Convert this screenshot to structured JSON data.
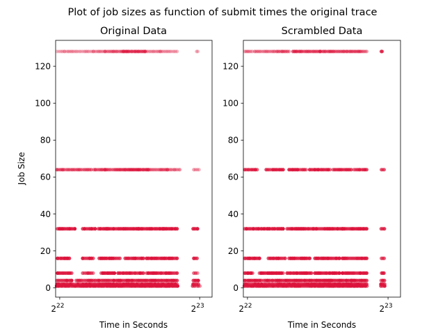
{
  "figure": {
    "suptitle": "Plot of job sizes as function of submit times the original trace",
    "point_color": "#dc143c"
  },
  "chart_data": [
    {
      "type": "scatter",
      "title": "Original Data",
      "xlabel": "Time in Seconds",
      "ylabel": "Job Size",
      "xscale": "log2",
      "xlim": [
        4110000,
        8920000
      ],
      "ylim": [
        -5,
        134
      ],
      "xticks": [
        {
          "value": 4194304,
          "base": "2",
          "exp": "22"
        },
        {
          "value": 8388608,
          "base": "2",
          "exp": "23"
        }
      ],
      "yticks": [
        0,
        20,
        40,
        60,
        80,
        100,
        120
      ],
      "grid": false,
      "bands": [
        {
          "y": 128,
          "segments": [
            [
              4140000,
              4280000,
              0.25
            ],
            [
              4300000,
              4950000,
              0.3
            ],
            [
              4960000,
              5250000,
              0.35
            ],
            [
              5250000,
              5750000,
              0.5
            ],
            [
              5750000,
              6400000,
              0.7
            ],
            [
              6400000,
              6900000,
              0.4
            ],
            [
              6900000,
              7500000,
              0.3
            ],
            [
              8260000,
              8320000,
              0.2
            ]
          ]
        },
        {
          "y": 64,
          "segments": [
            [
              4140000,
              4250000,
              0.6
            ],
            [
              4280000,
              4900000,
              0.55
            ],
            [
              4960000,
              5250000,
              0.6
            ],
            [
              5250000,
              5800000,
              0.6
            ],
            [
              5800000,
              6500000,
              0.75
            ],
            [
              6500000,
              7150000,
              0.5
            ],
            [
              7150000,
              7600000,
              0.45
            ],
            [
              8150000,
              8360000,
              0.4
            ]
          ]
        },
        {
          "y": 32,
          "segments": [
            [
              4150000,
              4520000,
              0.9
            ],
            [
              4700000,
              5000000,
              0.85
            ],
            [
              5080000,
              5300000,
              0.85
            ],
            [
              5300000,
              6200000,
              0.9
            ],
            [
              6200000,
              7000000,
              0.9
            ],
            [
              7000000,
              7500000,
              0.85
            ],
            [
              8120000,
              8300000,
              0.8
            ]
          ]
        },
        {
          "y": 16,
          "segments": [
            [
              4150000,
              4400000,
              0.85
            ],
            [
              4700000,
              4950000,
              0.8
            ],
            [
              5100000,
              5650000,
              0.85
            ],
            [
              5800000,
              6350000,
              0.85
            ],
            [
              6450000,
              7100000,
              0.85
            ],
            [
              7150000,
              7500000,
              0.8
            ],
            [
              8150000,
              8280000,
              0.75
            ]
          ]
        },
        {
          "y": 8,
          "segments": [
            [
              4150000,
              4450000,
              0.8
            ],
            [
              4700000,
              4950000,
              0.75
            ],
            [
              5150000,
              5500000,
              0.8
            ],
            [
              5600000,
              6350000,
              0.8
            ],
            [
              6450000,
              7100000,
              0.8
            ],
            [
              7150000,
              7500000,
              0.8
            ],
            [
              8150000,
              8300000,
              0.6
            ]
          ]
        },
        {
          "y": 4,
          "segments": [
            [
              4140000,
              4450000,
              0.85
            ],
            [
              4550000,
              5000000,
              0.8
            ],
            [
              5050000,
              6000000,
              0.85
            ],
            [
              6050000,
              6900000,
              0.85
            ],
            [
              6950000,
              7500000,
              0.85
            ],
            [
              8130000,
              8330000,
              0.8
            ]
          ]
        },
        {
          "y": 2,
          "segments": [
            [
              4140000,
              4500000,
              0.85
            ],
            [
              4550000,
              5200000,
              0.85
            ],
            [
              5250000,
              6300000,
              0.9
            ],
            [
              6300000,
              7000000,
              0.9
            ],
            [
              7000000,
              7500000,
              0.85
            ],
            [
              8120000,
              8340000,
              0.8
            ]
          ]
        },
        {
          "y": 1,
          "segments": [
            [
              4130000,
              4500000,
              0.9
            ],
            [
              4530000,
              5250000,
              0.9
            ],
            [
              5300000,
              6400000,
              0.95
            ],
            [
              6400000,
              7100000,
              0.95
            ],
            [
              7100000,
              7520000,
              0.9
            ],
            [
              8100000,
              8400000,
              0.6
            ]
          ]
        }
      ]
    },
    {
      "type": "scatter",
      "title": "Scrambled Data",
      "xlabel": "Time in Seconds",
      "ylabel": "",
      "xscale": "log2",
      "xlim": [
        4110000,
        8920000
      ],
      "ylim": [
        -5,
        134
      ],
      "xticks": [
        {
          "value": 4194304,
          "base": "2",
          "exp": "22"
        },
        {
          "value": 8388608,
          "base": "2",
          "exp": "23"
        }
      ],
      "yticks": [
        0,
        20,
        40,
        60,
        80,
        100,
        120
      ],
      "grid": false,
      "bands": [
        {
          "y": 128,
          "segments": [
            [
              4140000,
              4300000,
              0.35
            ],
            [
              4350000,
              4800000,
              0.4
            ],
            [
              4850000,
              5150000,
              0.55
            ],
            [
              5250000,
              6000000,
              0.65
            ],
            [
              6000000,
              6800000,
              0.6
            ],
            [
              6850000,
              7550000,
              0.55
            ],
            [
              8110000,
              8150000,
              0.6
            ]
          ]
        },
        {
          "y": 64,
          "segments": [
            [
              4140000,
              4400000,
              0.75
            ],
            [
              4600000,
              5000000,
              0.75
            ],
            [
              5150000,
              5600000,
              0.8
            ],
            [
              5700000,
              6300000,
              0.85
            ],
            [
              6400000,
              7000000,
              0.8
            ],
            [
              7100000,
              7550000,
              0.75
            ],
            [
              8120000,
              8230000,
              0.65
            ]
          ]
        },
        {
          "y": 32,
          "segments": [
            [
              4140000,
              4500000,
              0.9
            ],
            [
              4550000,
              5000000,
              0.9
            ],
            [
              5100000,
              5800000,
              0.9
            ],
            [
              5800000,
              6700000,
              0.9
            ],
            [
              6700000,
              7550000,
              0.9
            ],
            [
              8110000,
              8240000,
              0.85
            ]
          ]
        },
        {
          "y": 16,
          "segments": [
            [
              4140000,
              4450000,
              0.85
            ],
            [
              4650000,
              5050000,
              0.85
            ],
            [
              5150000,
              5700000,
              0.85
            ],
            [
              5850000,
              6600000,
              0.85
            ],
            [
              6700000,
              7550000,
              0.85
            ],
            [
              8120000,
              8230000,
              0.75
            ]
          ]
        },
        {
          "y": 8,
          "segments": [
            [
              4140000,
              4300000,
              0.85
            ],
            [
              4450000,
              5000000,
              0.85
            ],
            [
              5100000,
              5750000,
              0.85
            ],
            [
              5850000,
              6600000,
              0.85
            ],
            [
              6700000,
              7550000,
              0.85
            ],
            [
              8130000,
              8220000,
              0.75
            ]
          ]
        },
        {
          "y": 4,
          "segments": [
            [
              4140000,
              4500000,
              0.85
            ],
            [
              4550000,
              5200000,
              0.85
            ],
            [
              5250000,
              6300000,
              0.9
            ],
            [
              6300000,
              7000000,
              0.9
            ],
            [
              7000000,
              7550000,
              0.85
            ],
            [
              8110000,
              8240000,
              0.8
            ]
          ]
        },
        {
          "y": 2,
          "segments": [
            [
              4140000,
              4500000,
              0.85
            ],
            [
              4550000,
              5200000,
              0.85
            ],
            [
              5250000,
              6300000,
              0.9
            ],
            [
              6300000,
              7000000,
              0.9
            ],
            [
              7000000,
              7550000,
              0.85
            ],
            [
              8100000,
              8250000,
              0.8
            ]
          ]
        },
        {
          "y": 1,
          "segments": [
            [
              4130000,
              4500000,
              0.9
            ],
            [
              4530000,
              5250000,
              0.9
            ],
            [
              5300000,
              6400000,
              0.95
            ],
            [
              6400000,
              7100000,
              0.95
            ],
            [
              7100000,
              7560000,
              0.9
            ],
            [
              8100000,
              8250000,
              0.8
            ]
          ]
        }
      ]
    }
  ]
}
